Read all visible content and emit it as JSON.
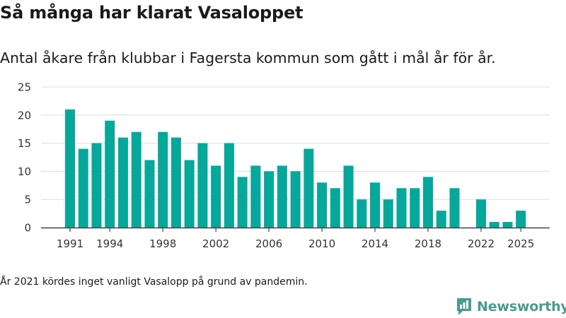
{
  "header": {
    "title": "Så många har klarat Vasaloppet",
    "subtitle": "Antal åkare från klubbar i Fagersta kommun som gått i mål år för år."
  },
  "footnote": "År 2021 kördes inget vanligt Vasalopp på grund av pandemin.",
  "brand": {
    "name": "Newsworthy",
    "icon": "newsworthy-logo-icon",
    "color": "#4a9a8f"
  },
  "colors": {
    "bar": "#05a89a",
    "grid": "#dddddd",
    "axis": "#444444",
    "text": "#333333"
  },
  "chart_data": {
    "type": "bar",
    "title": "Så många har klarat Vasaloppet",
    "xlabel": "",
    "ylabel": "",
    "ylim": [
      0,
      25
    ],
    "yticks": [
      0,
      5,
      10,
      15,
      20,
      25
    ],
    "xticks": [
      1991,
      1994,
      1998,
      2002,
      2006,
      2010,
      2014,
      2018,
      2022,
      2025
    ],
    "grid": true,
    "categories": [
      1991,
      1992,
      1993,
      1994,
      1995,
      1996,
      1997,
      1998,
      1999,
      2000,
      2001,
      2002,
      2003,
      2004,
      2005,
      2006,
      2007,
      2008,
      2009,
      2010,
      2011,
      2012,
      2013,
      2014,
      2015,
      2016,
      2017,
      2018,
      2019,
      2020,
      2021,
      2022,
      2023,
      2024,
      2025
    ],
    "values": [
      21,
      14,
      15,
      19,
      16,
      17,
      12,
      17,
      16,
      12,
      15,
      11,
      15,
      9,
      11,
      10,
      11,
      10,
      14,
      8,
      7,
      11,
      5,
      8,
      5,
      7,
      7,
      9,
      3,
      7,
      null,
      5,
      1,
      1,
      3
    ]
  }
}
